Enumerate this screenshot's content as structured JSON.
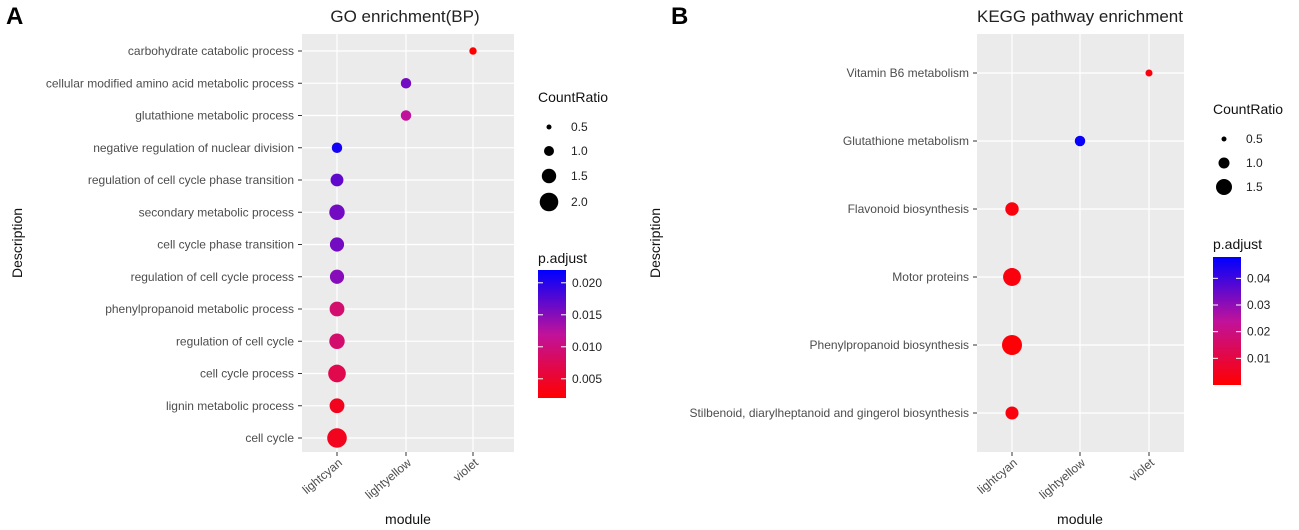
{
  "chart_data": [
    {
      "type": "scatter",
      "panel_label": "A",
      "title": "GO enrichment(BP)",
      "xlabel": "module",
      "ylabel": "Description",
      "x_categories": [
        "lightcyan",
        "lightyellow",
        "violet"
      ],
      "y_categories": [
        "carbohydrate catabolic process",
        "cellular modified amino acid metabolic process",
        "glutathione metabolic process",
        "negative regulation of nuclear division",
        "regulation of cell cycle phase transition",
        "secondary metabolic process",
        "cell cycle phase transition",
        "regulation of cell cycle process",
        "phenylpropanoid metabolic process",
        "regulation of cell cycle",
        "cell cycle process",
        "lignin metabolic process",
        "cell cycle"
      ],
      "points": [
        {
          "x": "violet",
          "y": "carbohydrate catabolic process",
          "count_ratio": 0.3,
          "p_adjust": 0.001
        },
        {
          "x": "lightyellow",
          "y": "cellular modified amino acid metabolic process",
          "count_ratio": 0.6,
          "p_adjust": 0.016
        },
        {
          "x": "lightyellow",
          "y": "glutathione metabolic process",
          "count_ratio": 0.6,
          "p_adjust": 0.012
        },
        {
          "x": "lightcyan",
          "y": "negative regulation of nuclear division",
          "count_ratio": 0.6,
          "p_adjust": 0.021
        },
        {
          "x": "lightcyan",
          "y": "regulation of cell cycle phase transition",
          "count_ratio": 0.9,
          "p_adjust": 0.017
        },
        {
          "x": "lightcyan",
          "y": "secondary metabolic process",
          "count_ratio": 1.3,
          "p_adjust": 0.016
        },
        {
          "x": "lightcyan",
          "y": "cell cycle phase transition",
          "count_ratio": 1.1,
          "p_adjust": 0.016
        },
        {
          "x": "lightcyan",
          "y": "regulation of cell cycle process",
          "count_ratio": 1.1,
          "p_adjust": 0.015
        },
        {
          "x": "lightcyan",
          "y": "phenylpropanoid metabolic process",
          "count_ratio": 1.2,
          "p_adjust": 0.009
        },
        {
          "x": "lightcyan",
          "y": "regulation of cell cycle",
          "count_ratio": 1.3,
          "p_adjust": 0.009
        },
        {
          "x": "lightcyan",
          "y": "cell cycle process",
          "count_ratio": 1.7,
          "p_adjust": 0.007
        },
        {
          "x": "lightcyan",
          "y": "lignin metabolic process",
          "count_ratio": 1.2,
          "p_adjust": 0.004
        },
        {
          "x": "lightcyan",
          "y": "cell cycle",
          "count_ratio": 2.1,
          "p_adjust": 0.004
        }
      ],
      "size_legend": {
        "title": "CountRatio",
        "breaks": [
          0.5,
          1.0,
          1.5,
          2.0
        ],
        "labels": [
          "0.5",
          "1.0",
          "1.5",
          "2.0"
        ],
        "max_value": 2.1
      },
      "color_legend": {
        "title": "p.adjust",
        "range": [
          0.002,
          0.022
        ],
        "breaks": [
          0.005,
          0.01,
          0.015,
          0.02
        ],
        "labels": [
          "0.005",
          "0.010",
          "0.015",
          "0.020"
        ],
        "low_color": "#FF0000",
        "high_color": "#0000FF"
      }
    },
    {
      "type": "scatter",
      "panel_label": "B",
      "title": "KEGG pathway enrichment",
      "xlabel": "module",
      "ylabel": "Description",
      "x_categories": [
        "lightcyan",
        "lightyellow",
        "violet"
      ],
      "y_categories": [
        "Vitamin B6 metabolism",
        "Glutathione metabolism",
        "Flavonoid biosynthesis",
        "Motor proteins",
        "Phenylpropanoid biosynthesis",
        "Stilbenoid, diarylheptanoid and gingerol biosynthesis"
      ],
      "points": [
        {
          "x": "violet",
          "y": "Vitamin B6 metabolism",
          "count_ratio": 0.25,
          "p_adjust": 0.002
        },
        {
          "x": "lightyellow",
          "y": "Glutathione metabolism",
          "count_ratio": 0.55,
          "p_adjust": 0.047
        },
        {
          "x": "lightcyan",
          "y": "Flavonoid biosynthesis",
          "count_ratio": 0.9,
          "p_adjust": 0.002
        },
        {
          "x": "lightcyan",
          "y": "Motor proteins",
          "count_ratio": 1.6,
          "p_adjust": 0.002
        },
        {
          "x": "lightcyan",
          "y": "Phenylpropanoid biosynthesis",
          "count_ratio": 2.0,
          "p_adjust": 0.001
        },
        {
          "x": "lightcyan",
          "y": "Stilbenoid, diarylheptanoid and gingerol biosynthesis",
          "count_ratio": 0.85,
          "p_adjust": 0.002
        }
      ],
      "size_legend": {
        "title": "CountRatio",
        "breaks": [
          0.5,
          1.0,
          1.5
        ],
        "labels": [
          "0.5",
          "1.0",
          "1.5"
        ],
        "max_value": 2.0
      },
      "color_legend": {
        "title": "p.adjust",
        "range": [
          0.0,
          0.048
        ],
        "breaks": [
          0.01,
          0.02,
          0.03,
          0.04
        ],
        "labels": [
          "0.01",
          "0.02",
          "0.03",
          "0.04"
        ],
        "low_color": "#FF0000",
        "high_color": "#0000FF"
      }
    }
  ]
}
